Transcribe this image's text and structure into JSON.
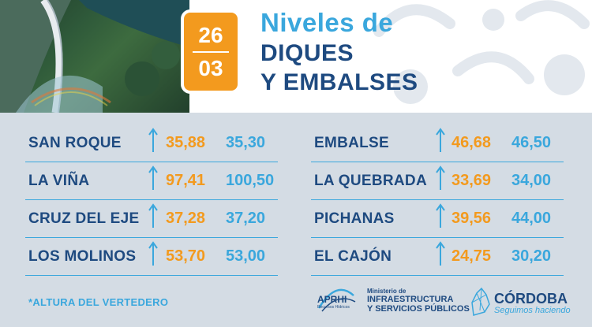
{
  "date": {
    "day": "26",
    "month": "03"
  },
  "title": {
    "line1": "Niveles de",
    "line2": "DIQUES",
    "line3": "Y EMBALSES"
  },
  "reservoirs_left": [
    {
      "name": "SAN ROQUE",
      "current": "35,88",
      "spillway": "35,30",
      "trend": "up"
    },
    {
      "name": "LA VIÑA",
      "current": "97,41",
      "spillway": "100,50",
      "trend": "up"
    },
    {
      "name": "CRUZ DEL EJE",
      "current": "37,28",
      "spillway": "37,20",
      "trend": "up"
    },
    {
      "name": "LOS MOLINOS",
      "current": "53,70",
      "spillway": "53,00",
      "trend": "up"
    }
  ],
  "reservoirs_right": [
    {
      "name": "EMBALSE",
      "current": "46,68",
      "spillway": "46,50",
      "trend": "up"
    },
    {
      "name": "LA QUEBRADA",
      "current": "33,69",
      "spillway": "34,00",
      "trend": "up"
    },
    {
      "name": "PICHANAS",
      "current": "39,56",
      "spillway": "44,00",
      "trend": "up"
    },
    {
      "name": "EL CAJÓN",
      "current": "24,75",
      "spillway": "30,20",
      "trend": "up"
    }
  ],
  "footnote": "*ALTURA DEL VERTEDERO",
  "logos": {
    "aprhi": "APRHI",
    "aprhi_sub": "Recursos Hídricos",
    "ministry_line1": "Ministerio de",
    "ministry_line2": "INFRAESTRUCTURA",
    "ministry_line3": "Y SERVICIOS PÚBLICOS",
    "cordoba": "CÓRDOBA",
    "cordoba_slogan": "Seguimos haciendo"
  },
  "colors": {
    "orange": "#f39a1e",
    "light_blue": "#3aa7dd",
    "navy": "#1e4a80",
    "background": "#d4dce4"
  },
  "icons": {
    "trend": "arrow-up-icon"
  }
}
